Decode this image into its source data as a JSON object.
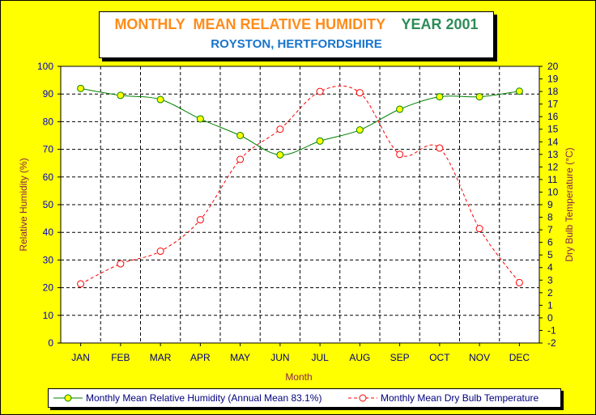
{
  "chart_data": {
    "type": "line",
    "title": "MONTHLY  MEAN RELATIVE HUMIDITY",
    "title_year": "YEAR 2001",
    "subtitle": "ROYSTON, HERTFORDSHIRE",
    "xlabel": "Month",
    "ylabel_left": "Relative Humidity (%)",
    "ylabel_right": "Dry Bulb Temperature (°C)",
    "categories": [
      "JAN",
      "FEB",
      "MAR",
      "APR",
      "MAY",
      "JUN",
      "JUL",
      "AUG",
      "SEP",
      "OCT",
      "NOV",
      "DEC"
    ],
    "y_left": {
      "min": 0,
      "max": 100,
      "step": 10,
      "ticks": [
        "0",
        "10",
        "20",
        "30",
        "40",
        "50",
        "60",
        "70",
        "80",
        "90",
        "100"
      ]
    },
    "y_right": {
      "min": -2,
      "max": 20,
      "step": 1,
      "ticks": [
        "-2",
        "-1",
        "0",
        "1",
        "2",
        "3",
        "4",
        "5",
        "6",
        "7",
        "8",
        "9",
        "10",
        "11",
        "12",
        "13",
        "14",
        "15",
        "16",
        "17",
        "18",
        "19",
        "20"
      ]
    },
    "grid": true,
    "legend_position": "bottom",
    "series": [
      {
        "name": "Monthly Mean Relative Humidity (Annual Mean 83.1%)",
        "axis": "left",
        "color": "#008000",
        "marker_fill": "#ffff00",
        "line_style": "solid",
        "values": [
          92,
          89.5,
          88,
          81,
          75,
          68,
          73,
          77,
          84.5,
          89,
          89,
          91
        ]
      },
      {
        "name": "Monthly Mean Dry Bulb Temperature",
        "axis": "right",
        "color": "#ff0000",
        "marker_fill": "#ffffff",
        "line_style": "dashed",
        "values": [
          2.7,
          4.3,
          5.3,
          7.8,
          12.6,
          15,
          18,
          17.9,
          13,
          13.5,
          7.1,
          2.8
        ]
      }
    ],
    "colors": {
      "background": "#ffff00",
      "left_axis_text": "#0000cd",
      "axis_title": "#8b2252",
      "title_orange": "#ff8c1a",
      "title_green": "#2e8b57",
      "subtitle_blue": "#1874cd"
    }
  }
}
